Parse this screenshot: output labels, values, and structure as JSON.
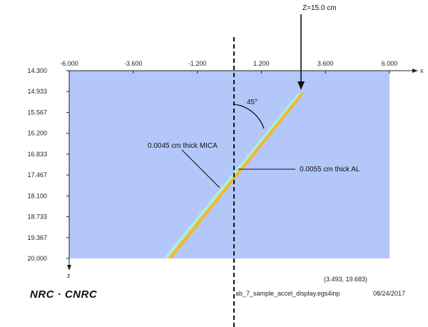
{
  "x_axis": {
    "ticks": [
      "-6.000",
      "-3.600",
      "-1.200",
      "1.200",
      "3.600",
      "6.000"
    ],
    "label": "x"
  },
  "y_axis": {
    "ticks": [
      "14.300",
      "14.933",
      "15.567",
      "16.200",
      "16.833",
      "17.467",
      "18.100",
      "18.733",
      "19.367",
      "20.000"
    ],
    "label": "z"
  },
  "annotations": {
    "z_position": "Z=15.0 cm",
    "angle": "45°",
    "mica_label": "0.0045 cm thick MICA",
    "al_label": "0.0055 cm thick AL"
  },
  "footer": {
    "coordinates": "(3.493, 19.683)",
    "filename": "ab_7_sample_accel_display.egs4inp",
    "date": "08/24/2017",
    "logo": "NRC · CNRC"
  },
  "colors": {
    "background_region": "#b3c7fa",
    "al_layer": "#f5b82e",
    "mica_layer": "#a8efe0"
  }
}
